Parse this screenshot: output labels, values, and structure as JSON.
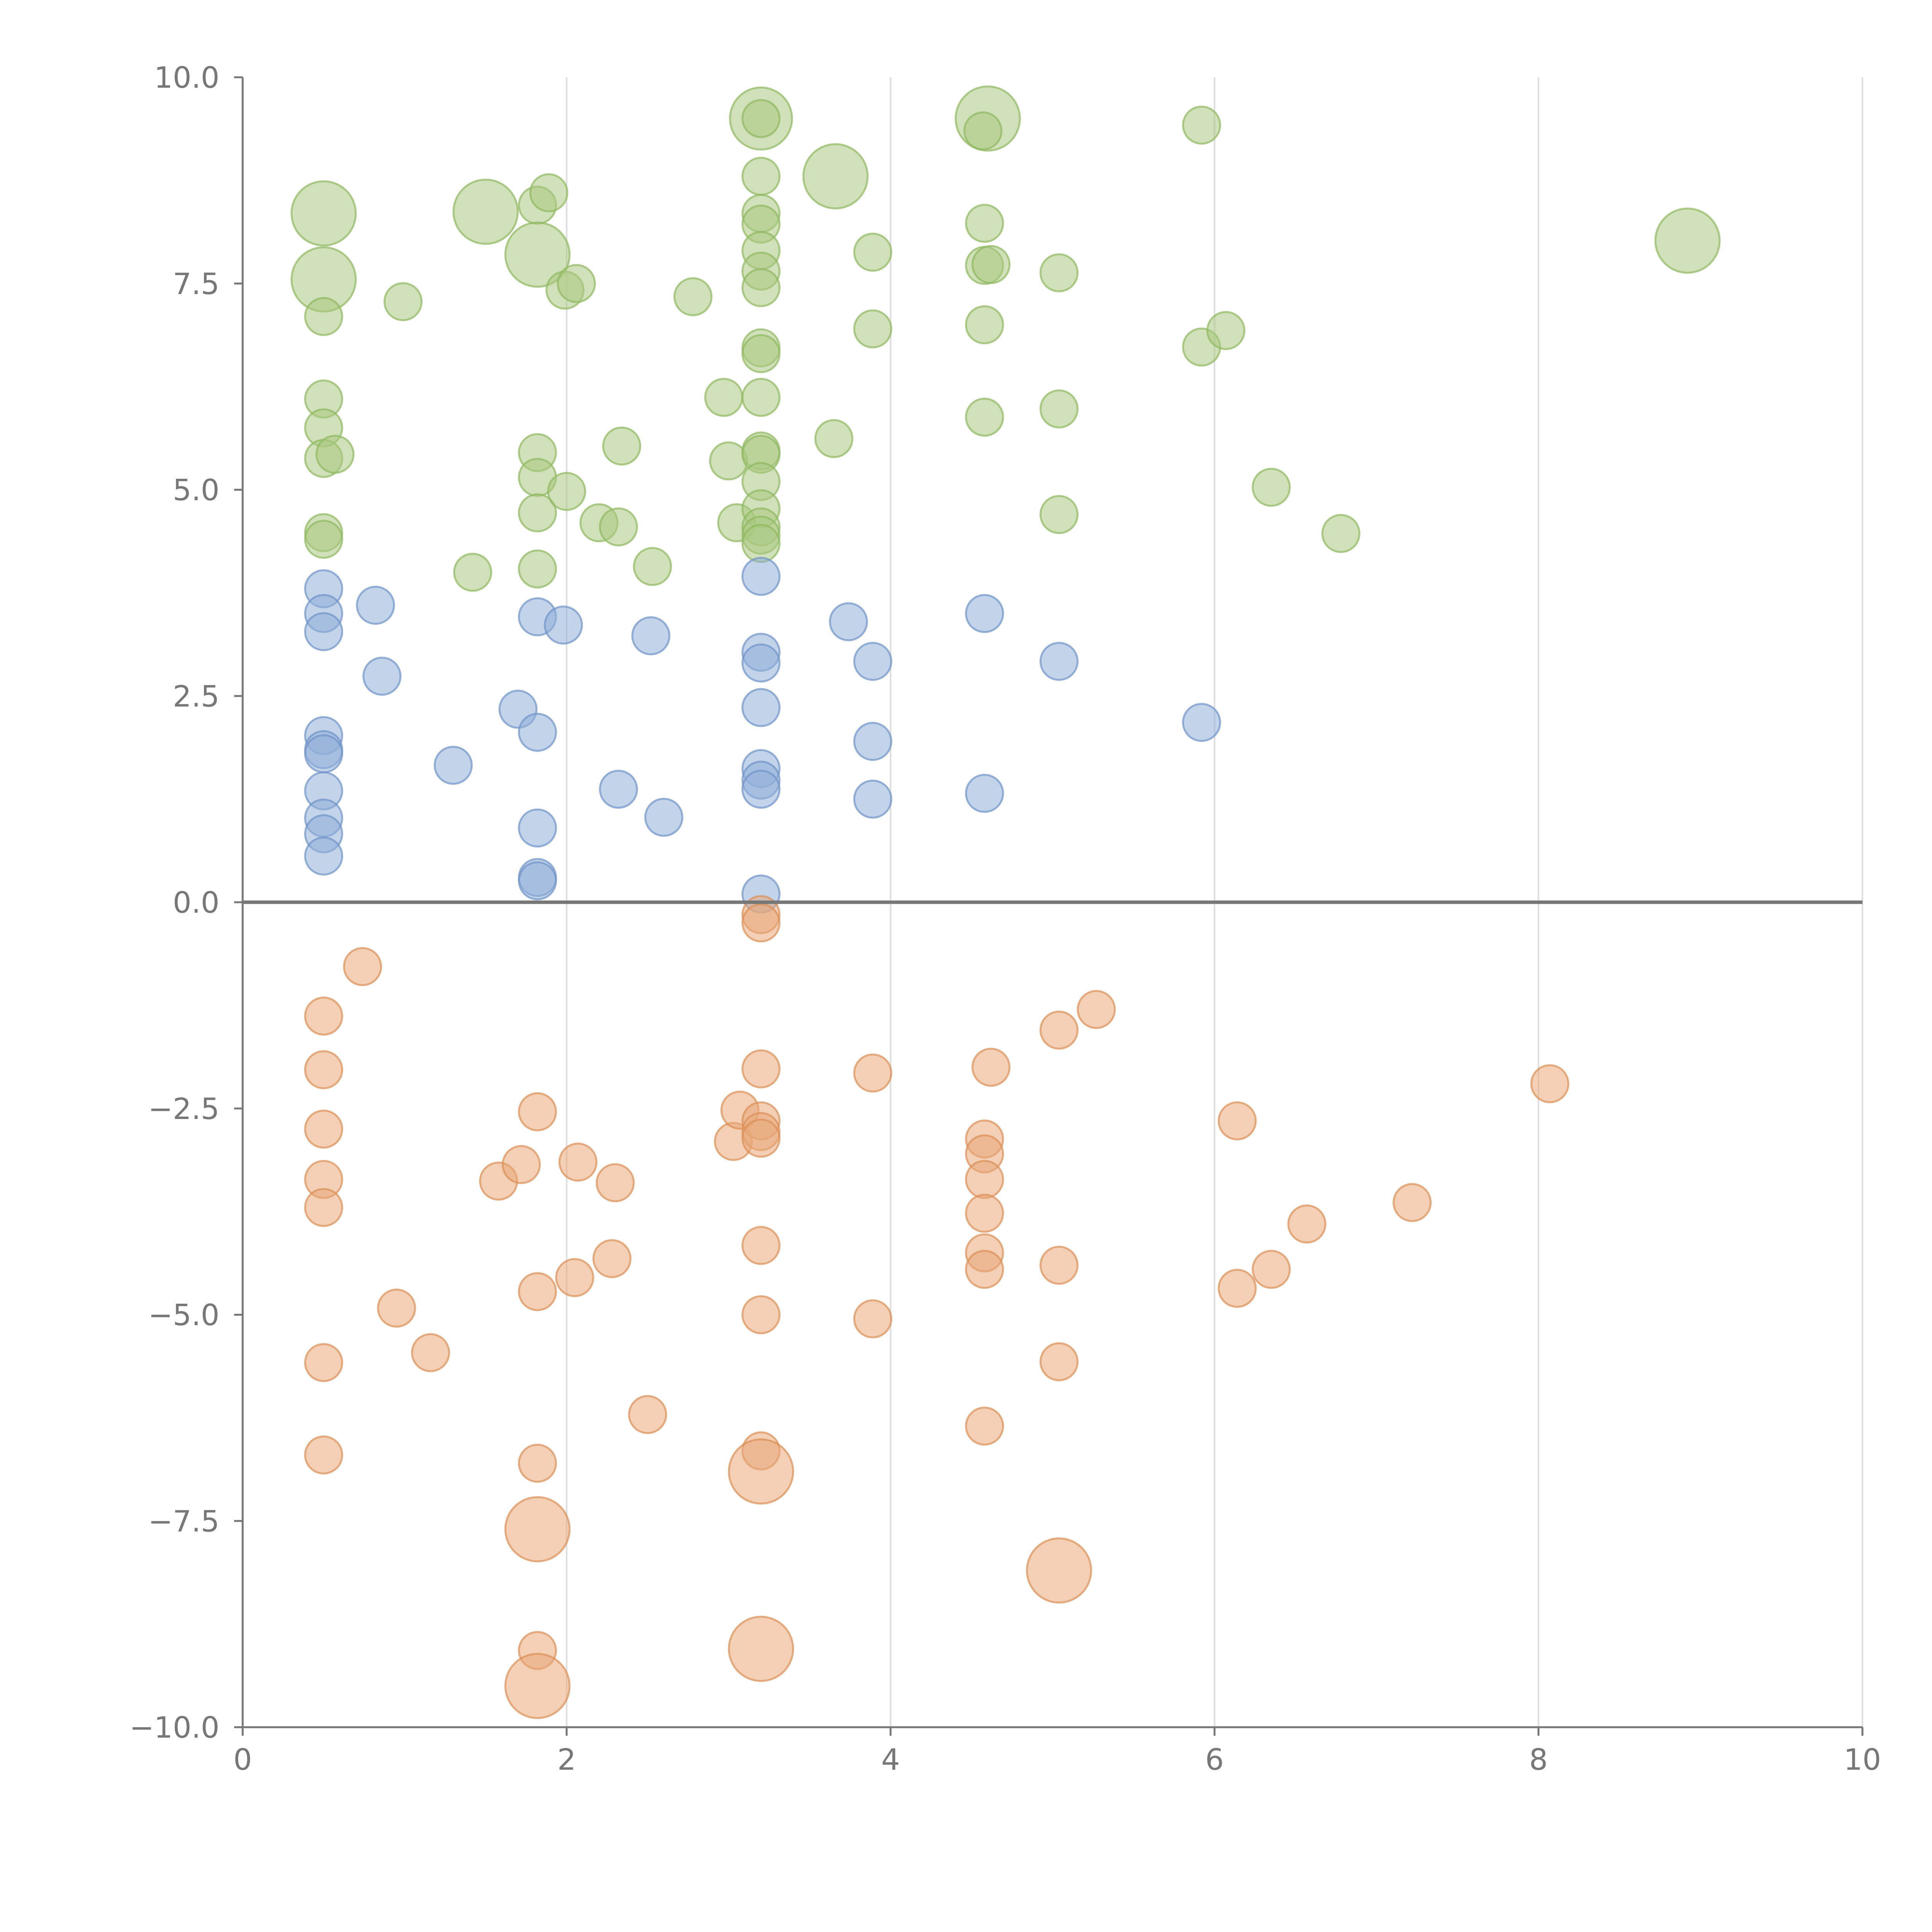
{
  "chart_data": {
    "type": "scatter",
    "title": "",
    "xlabel": "",
    "ylabel": "",
    "xlim": [
      0,
      10
    ],
    "ylim": [
      -10,
      10
    ],
    "grid": "vertical",
    "x_ticks": [
      0,
      2,
      4,
      6,
      8,
      10
    ],
    "y_ticks": [
      -10,
      -7.5,
      -5,
      -2.5,
      0,
      2.5,
      5,
      7.5,
      10
    ],
    "x_tick_labels": [
      "0",
      "2",
      "4",
      "6",
      "8",
      "10"
    ],
    "y_tick_labels": [
      "−10.0",
      "−7.5",
      "−5.0",
      "−2.5",
      "0.0",
      "2.5",
      "5.0",
      "7.5",
      "10.0"
    ],
    "zero_line": 0,
    "series": [
      {
        "name": "green",
        "fill": "#a9c97f",
        "stroke": "#8fb85f",
        "points": [
          {
            "x": 0.5,
            "y": 8.35,
            "s": 3
          },
          {
            "x": 0.5,
            "y": 7.55,
            "s": 3
          },
          {
            "x": 0.5,
            "y": 7.1,
            "s": 1
          },
          {
            "x": 0.5,
            "y": 6.1,
            "s": 1
          },
          {
            "x": 0.5,
            "y": 5.75,
            "s": 1
          },
          {
            "x": 0.5,
            "y": 5.38,
            "s": 1
          },
          {
            "x": 0.57,
            "y": 5.43,
            "s": 1
          },
          {
            "x": 0.5,
            "y": 4.48,
            "s": 1
          },
          {
            "x": 0.5,
            "y": 4.4,
            "s": 1
          },
          {
            "x": 0.99,
            "y": 7.28,
            "s": 1
          },
          {
            "x": 1.42,
            "y": 4.0,
            "s": 1
          },
          {
            "x": 1.5,
            "y": 8.37,
            "s": 3
          },
          {
            "x": 1.82,
            "y": 8.45,
            "s": 1
          },
          {
            "x": 1.89,
            "y": 8.6,
            "s": 1
          },
          {
            "x": 1.82,
            "y": 7.85,
            "s": 3
          },
          {
            "x": 1.99,
            "y": 7.42,
            "s": 1
          },
          {
            "x": 2.06,
            "y": 7.5,
            "s": 1
          },
          {
            "x": 1.82,
            "y": 5.45,
            "s": 1
          },
          {
            "x": 1.82,
            "y": 5.15,
            "s": 1
          },
          {
            "x": 1.82,
            "y": 4.72,
            "s": 1
          },
          {
            "x": 1.82,
            "y": 4.04,
            "s": 1
          },
          {
            "x": 2.0,
            "y": 4.98,
            "s": 1
          },
          {
            "x": 2.2,
            "y": 4.6,
            "s": 1
          },
          {
            "x": 2.32,
            "y": 4.55,
            "s": 1
          },
          {
            "x": 2.34,
            "y": 5.53,
            "s": 1
          },
          {
            "x": 2.53,
            "y": 4.07,
            "s": 1
          },
          {
            "x": 2.78,
            "y": 7.34,
            "s": 1
          },
          {
            "x": 2.97,
            "y": 6.12,
            "s": 1
          },
          {
            "x": 3.0,
            "y": 5.35,
            "s": 1
          },
          {
            "x": 3.05,
            "y": 4.6,
            "s": 1
          },
          {
            "x": 3.2,
            "y": 9.5,
            "s": 2.8
          },
          {
            "x": 3.2,
            "y": 9.5,
            "s": 1
          },
          {
            "x": 3.2,
            "y": 8.8,
            "s": 1
          },
          {
            "x": 3.2,
            "y": 8.35,
            "s": 1
          },
          {
            "x": 3.2,
            "y": 8.22,
            "s": 1
          },
          {
            "x": 3.2,
            "y": 7.9,
            "s": 1
          },
          {
            "x": 3.2,
            "y": 7.65,
            "s": 1
          },
          {
            "x": 3.2,
            "y": 7.45,
            "s": 1
          },
          {
            "x": 3.2,
            "y": 6.72,
            "s": 1
          },
          {
            "x": 3.2,
            "y": 6.65,
            "s": 1
          },
          {
            "x": 3.2,
            "y": 6.12,
            "s": 1
          },
          {
            "x": 3.2,
            "y": 5.47,
            "s": 1
          },
          {
            "x": 3.2,
            "y": 5.43,
            "s": 1
          },
          {
            "x": 3.2,
            "y": 5.1,
            "s": 1
          },
          {
            "x": 3.2,
            "y": 4.77,
            "s": 1
          },
          {
            "x": 3.2,
            "y": 4.55,
            "s": 1
          },
          {
            "x": 3.2,
            "y": 4.45,
            "s": 1
          },
          {
            "x": 3.2,
            "y": 4.35,
            "s": 1
          },
          {
            "x": 3.65,
            "y": 5.62,
            "s": 1
          },
          {
            "x": 3.66,
            "y": 8.8,
            "s": 3
          },
          {
            "x": 3.89,
            "y": 7.88,
            "s": 1
          },
          {
            "x": 3.89,
            "y": 6.95,
            "s": 1
          },
          {
            "x": 4.6,
            "y": 9.5,
            "s": 3
          },
          {
            "x": 4.57,
            "y": 9.35,
            "s": 1
          },
          {
            "x": 4.58,
            "y": 8.23,
            "s": 1
          },
          {
            "x": 4.58,
            "y": 7.72,
            "s": 1
          },
          {
            "x": 4.62,
            "y": 7.73,
            "s": 1
          },
          {
            "x": 4.58,
            "y": 7.0,
            "s": 1
          },
          {
            "x": 4.58,
            "y": 5.88,
            "s": 1
          },
          {
            "x": 5.04,
            "y": 7.63,
            "s": 1
          },
          {
            "x": 5.04,
            "y": 5.98,
            "s": 1
          },
          {
            "x": 5.04,
            "y": 4.7,
            "s": 1
          },
          {
            "x": 5.92,
            "y": 9.42,
            "s": 1
          },
          {
            "x": 5.92,
            "y": 6.73,
            "s": 1
          },
          {
            "x": 6.07,
            "y": 6.93,
            "s": 1
          },
          {
            "x": 6.35,
            "y": 5.03,
            "s": 1
          },
          {
            "x": 6.78,
            "y": 4.47,
            "s": 1
          },
          {
            "x": 8.92,
            "y": 8.02,
            "s": 3
          }
        ]
      },
      {
        "name": "blue",
        "fill": "#8fafd9",
        "stroke": "#6f93c8",
        "points": [
          {
            "x": 0.5,
            "y": 3.8,
            "s": 1
          },
          {
            "x": 0.5,
            "y": 3.5,
            "s": 1
          },
          {
            "x": 0.5,
            "y": 3.28,
            "s": 1
          },
          {
            "x": 0.5,
            "y": 2.02,
            "s": 1
          },
          {
            "x": 0.5,
            "y": 1.85,
            "s": 1
          },
          {
            "x": 0.5,
            "y": 1.8,
            "s": 1
          },
          {
            "x": 0.5,
            "y": 1.35,
            "s": 1
          },
          {
            "x": 0.5,
            "y": 1.02,
            "s": 1
          },
          {
            "x": 0.5,
            "y": 0.83,
            "s": 1
          },
          {
            "x": 0.5,
            "y": 0.56,
            "s": 1
          },
          {
            "x": 0.82,
            "y": 3.6,
            "s": 1
          },
          {
            "x": 0.86,
            "y": 2.74,
            "s": 1
          },
          {
            "x": 1.3,
            "y": 1.66,
            "s": 1
          },
          {
            "x": 1.7,
            "y": 2.34,
            "s": 1
          },
          {
            "x": 1.82,
            "y": 3.46,
            "s": 1
          },
          {
            "x": 1.82,
            "y": 2.06,
            "s": 1
          },
          {
            "x": 1.82,
            "y": 0.9,
            "s": 1
          },
          {
            "x": 1.82,
            "y": 0.3,
            "s": 1
          },
          {
            "x": 1.82,
            "y": 0.26,
            "s": 1
          },
          {
            "x": 1.98,
            "y": 3.36,
            "s": 1
          },
          {
            "x": 2.32,
            "y": 1.37,
            "s": 1
          },
          {
            "x": 2.52,
            "y": 3.23,
            "s": 1
          },
          {
            "x": 2.6,
            "y": 1.03,
            "s": 1
          },
          {
            "x": 3.2,
            "y": 3.95,
            "s": 1
          },
          {
            "x": 3.2,
            "y": 3.03,
            "s": 1
          },
          {
            "x": 3.2,
            "y": 2.9,
            "s": 1
          },
          {
            "x": 3.2,
            "y": 2.36,
            "s": 1
          },
          {
            "x": 3.2,
            "y": 1.62,
            "s": 1
          },
          {
            "x": 3.2,
            "y": 1.48,
            "s": 1
          },
          {
            "x": 3.2,
            "y": 1.37,
            "s": 1
          },
          {
            "x": 3.2,
            "y": 0.1,
            "s": 1
          },
          {
            "x": 3.74,
            "y": 3.4,
            "s": 1
          },
          {
            "x": 3.89,
            "y": 2.92,
            "s": 1
          },
          {
            "x": 3.89,
            "y": 1.95,
            "s": 1
          },
          {
            "x": 3.89,
            "y": 1.25,
            "s": 1
          },
          {
            "x": 4.58,
            "y": 3.5,
            "s": 1
          },
          {
            "x": 4.58,
            "y": 1.32,
            "s": 1
          },
          {
            "x": 5.04,
            "y": 2.92,
            "s": 1
          },
          {
            "x": 5.92,
            "y": 2.18,
            "s": 1
          }
        ]
      },
      {
        "name": "orange",
        "fill": "#e8a878",
        "stroke": "#dc8f55",
        "points": [
          {
            "x": 0.5,
            "y": -1.38,
            "s": 1
          },
          {
            "x": 0.5,
            "y": -2.03,
            "s": 1
          },
          {
            "x": 0.5,
            "y": -2.75,
            "s": 1
          },
          {
            "x": 0.5,
            "y": -3.36,
            "s": 1
          },
          {
            "x": 0.5,
            "y": -3.7,
            "s": 1
          },
          {
            "x": 0.5,
            "y": -5.58,
            "s": 1
          },
          {
            "x": 0.5,
            "y": -6.7,
            "s": 1
          },
          {
            "x": 0.74,
            "y": -0.78,
            "s": 1
          },
          {
            "x": 0.95,
            "y": -4.92,
            "s": 1
          },
          {
            "x": 1.16,
            "y": -5.46,
            "s": 1
          },
          {
            "x": 1.58,
            "y": -3.38,
            "s": 1
          },
          {
            "x": 1.72,
            "y": -3.18,
            "s": 1
          },
          {
            "x": 1.82,
            "y": -2.54,
            "s": 1
          },
          {
            "x": 1.82,
            "y": -4.72,
            "s": 1
          },
          {
            "x": 1.82,
            "y": -6.8,
            "s": 1
          },
          {
            "x": 1.82,
            "y": -7.6,
            "s": 3
          },
          {
            "x": 1.82,
            "y": -9.07,
            "s": 1
          },
          {
            "x": 1.82,
            "y": -9.5,
            "s": 3
          },
          {
            "x": 2.05,
            "y": -4.55,
            "s": 1
          },
          {
            "x": 2.07,
            "y": -3.15,
            "s": 1
          },
          {
            "x": 2.28,
            "y": -4.32,
            "s": 1
          },
          {
            "x": 2.3,
            "y": -3.4,
            "s": 1
          },
          {
            "x": 2.5,
            "y": -6.21,
            "s": 1
          },
          {
            "x": 3.03,
            "y": -2.9,
            "s": 1
          },
          {
            "x": 3.07,
            "y": -2.52,
            "s": 1
          },
          {
            "x": 3.2,
            "y": -0.15,
            "s": 1
          },
          {
            "x": 3.2,
            "y": -0.25,
            "s": 1
          },
          {
            "x": 3.2,
            "y": -2.02,
            "s": 1
          },
          {
            "x": 3.2,
            "y": -2.65,
            "s": 1
          },
          {
            "x": 3.2,
            "y": -2.78,
            "s": 1
          },
          {
            "x": 3.2,
            "y": -2.86,
            "s": 1
          },
          {
            "x": 3.2,
            "y": -4.16,
            "s": 1
          },
          {
            "x": 3.2,
            "y": -5.0,
            "s": 1
          },
          {
            "x": 3.2,
            "y": -6.65,
            "s": 1
          },
          {
            "x": 3.2,
            "y": -6.9,
            "s": 3
          },
          {
            "x": 3.2,
            "y": -9.05,
            "s": 3
          },
          {
            "x": 3.89,
            "y": -2.07,
            "s": 1
          },
          {
            "x": 3.89,
            "y": -5.05,
            "s": 1
          },
          {
            "x": 4.58,
            "y": -2.87,
            "s": 1
          },
          {
            "x": 4.58,
            "y": -3.05,
            "s": 1
          },
          {
            "x": 4.58,
            "y": -3.36,
            "s": 1
          },
          {
            "x": 4.58,
            "y": -3.77,
            "s": 1
          },
          {
            "x": 4.58,
            "y": -4.25,
            "s": 1
          },
          {
            "x": 4.58,
            "y": -4.45,
            "s": 1
          },
          {
            "x": 4.58,
            "y": -6.35,
            "s": 1
          },
          {
            "x": 4.62,
            "y": -2.0,
            "s": 1
          },
          {
            "x": 5.04,
            "y": -1.55,
            "s": 1
          },
          {
            "x": 5.04,
            "y": -4.4,
            "s": 1
          },
          {
            "x": 5.04,
            "y": -5.57,
            "s": 1
          },
          {
            "x": 5.04,
            "y": -8.1,
            "s": 3
          },
          {
            "x": 5.27,
            "y": -1.3,
            "s": 1
          },
          {
            "x": 6.14,
            "y": -2.65,
            "s": 1
          },
          {
            "x": 6.14,
            "y": -4.68,
            "s": 1
          },
          {
            "x": 6.35,
            "y": -4.45,
            "s": 1
          },
          {
            "x": 6.57,
            "y": -3.9,
            "s": 1
          },
          {
            "x": 7.22,
            "y": -3.64,
            "s": 1
          },
          {
            "x": 8.07,
            "y": -2.2,
            "s": 1
          }
        ]
      }
    ]
  }
}
